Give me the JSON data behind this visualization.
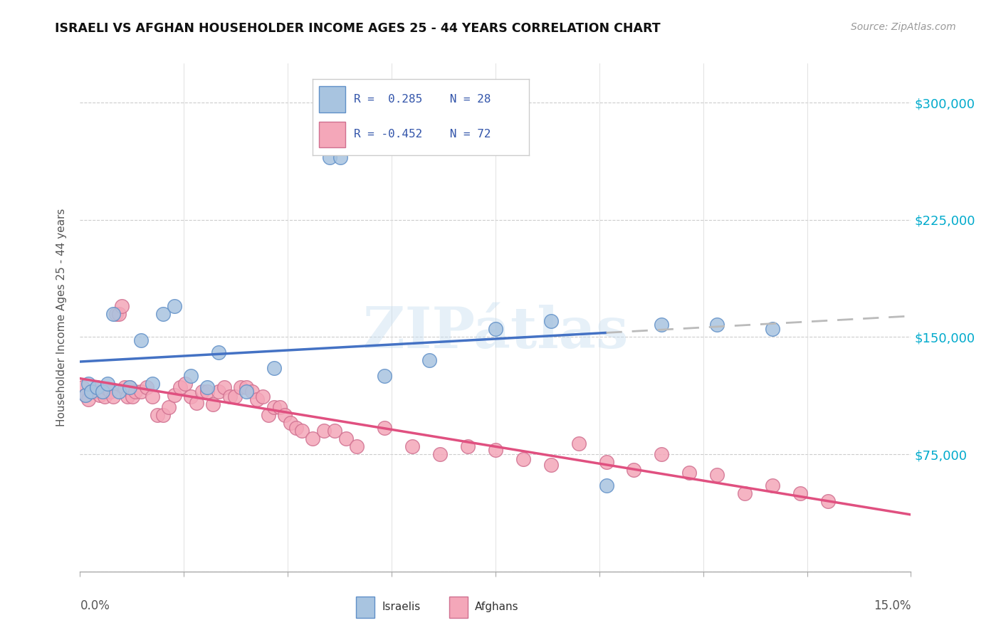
{
  "title": "ISRAELI VS AFGHAN HOUSEHOLDER INCOME AGES 25 - 44 YEARS CORRELATION CHART",
  "source": "Source: ZipAtlas.com",
  "ylabel": "Householder Income Ages 25 - 44 years",
  "xlim": [
    0.0,
    15.0
  ],
  "ylim": [
    0,
    325000
  ],
  "yticks": [
    0,
    75000,
    150000,
    225000,
    300000
  ],
  "ytick_labels": [
    "",
    "$75,000",
    "$150,000",
    "$225,000",
    "$300,000"
  ],
  "xticks": [
    0.0,
    1.875,
    3.75,
    5.625,
    7.5,
    9.375,
    11.25,
    13.125,
    15.0
  ],
  "israeli_color": "#a8c4e0",
  "afghan_color": "#f4a7b9",
  "israeli_line_color": "#4472c4",
  "afghan_line_color": "#e05080",
  "trend_ext_color": "#bbbbbb",
  "watermark": "ZIPátlas",
  "israeli_x": [
    0.1,
    0.15,
    0.2,
    0.3,
    0.4,
    0.5,
    0.6,
    0.7,
    0.9,
    1.1,
    1.3,
    1.5,
    1.7,
    2.0,
    2.3,
    2.5,
    3.0,
    3.5,
    4.5,
    4.7,
    5.5,
    6.3,
    7.5,
    8.5,
    9.5,
    10.5,
    11.5,
    12.5
  ],
  "israeli_y": [
    113000,
    120000,
    115000,
    118000,
    115000,
    120000,
    165000,
    115000,
    118000,
    148000,
    120000,
    165000,
    170000,
    125000,
    118000,
    140000,
    115000,
    130000,
    265000,
    265000,
    125000,
    135000,
    155000,
    160000,
    55000,
    158000,
    158000,
    155000
  ],
  "afghan_x": [
    0.05,
    0.1,
    0.15,
    0.2,
    0.25,
    0.3,
    0.35,
    0.4,
    0.45,
    0.5,
    0.55,
    0.6,
    0.65,
    0.7,
    0.75,
    0.8,
    0.85,
    0.9,
    0.95,
    1.0,
    1.1,
    1.2,
    1.3,
    1.4,
    1.5,
    1.6,
    1.7,
    1.8,
    1.9,
    2.0,
    2.1,
    2.2,
    2.3,
    2.4,
    2.5,
    2.6,
    2.7,
    2.8,
    2.9,
    3.0,
    3.1,
    3.2,
    3.3,
    3.4,
    3.5,
    3.6,
    3.7,
    3.8,
    3.9,
    4.0,
    4.2,
    4.4,
    4.6,
    4.8,
    5.0,
    5.5,
    6.0,
    6.5,
    7.0,
    7.5,
    8.0,
    8.5,
    9.0,
    9.5,
    10.0,
    10.5,
    11.0,
    11.5,
    12.0,
    12.5,
    13.0,
    13.5
  ],
  "afghan_y": [
    118000,
    113000,
    110000,
    115000,
    115000,
    117000,
    113000,
    115000,
    112000,
    117000,
    115000,
    112000,
    165000,
    165000,
    170000,
    118000,
    112000,
    118000,
    112000,
    115000,
    115000,
    118000,
    112000,
    100000,
    100000,
    105000,
    113000,
    118000,
    120000,
    112000,
    108000,
    115000,
    115000,
    107000,
    115000,
    118000,
    112000,
    112000,
    118000,
    118000,
    115000,
    110000,
    112000,
    100000,
    105000,
    105000,
    100000,
    95000,
    92000,
    90000,
    85000,
    90000,
    90000,
    85000,
    80000,
    92000,
    80000,
    75000,
    80000,
    78000,
    72000,
    68000,
    82000,
    70000,
    65000,
    75000,
    63000,
    62000,
    50000,
    55000,
    50000,
    45000
  ]
}
